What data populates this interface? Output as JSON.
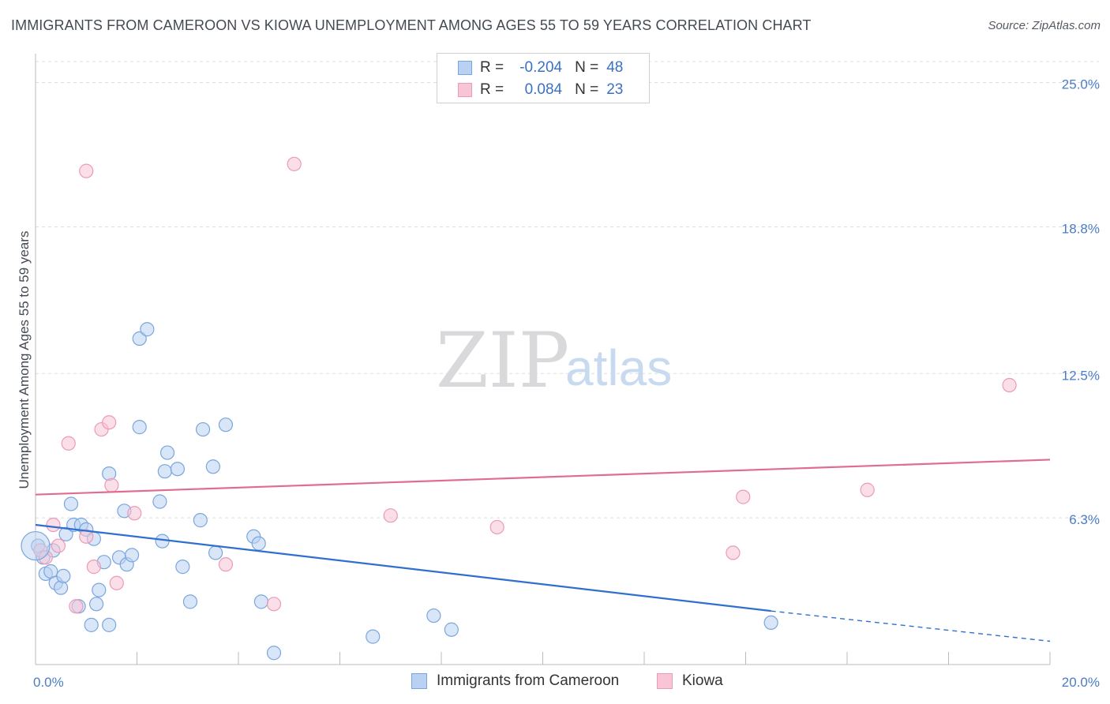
{
  "title": "IMMIGRANTS FROM CAMEROON VS KIOWA UNEMPLOYMENT AMONG AGES 55 TO 59 YEARS CORRELATION CHART",
  "source": "Source: ZipAtlas.com",
  "watermark": {
    "zip": "ZIP",
    "atlas": "atlas"
  },
  "colors": {
    "blue_fill": "#b9d1f2",
    "blue_stroke": "#7aa6dd",
    "blue_line": "#2f6fcf",
    "pink_fill": "#f7c5d5",
    "pink_stroke": "#ec9ab6",
    "pink_line": "#e06c94",
    "grid": "#dddddd",
    "axis_text": "#4a7cc9"
  },
  "legend": {
    "rows": [
      {
        "r_label": "R =",
        "r_value": "-0.204",
        "n_label": "N =",
        "n_value": "48"
      },
      {
        "r_label": "R =",
        "r_value": "0.084",
        "n_label": "N =",
        "n_value": "23"
      }
    ]
  },
  "bottom_legend": {
    "items": [
      {
        "label": "Immigrants from Cameroon"
      },
      {
        "label": "Kiowa"
      }
    ]
  },
  "chart_data": {
    "type": "scatter",
    "title": "IMMIGRANTS FROM CAMEROON VS KIOWA UNEMPLOYMENT AMONG AGES 55 TO 59 YEARS CORRELATION CHART",
    "xlabel": "",
    "ylabel": "Unemployment Among Ages 55 to 59 years",
    "xlim": [
      0,
      20
    ],
    "ylim": [
      0,
      25.9
    ],
    "x_tick_labels": [
      {
        "value": 0,
        "label": "0.0%"
      },
      {
        "value": 20,
        "label": "20.0%"
      }
    ],
    "y_ticks": [
      {
        "value": 25.0,
        "label": "25.0%"
      },
      {
        "value": 18.8,
        "label": "18.8%"
      },
      {
        "value": 12.5,
        "label": "12.5%"
      },
      {
        "value": 6.3,
        "label": "6.3%"
      }
    ],
    "x_minor_ticks": [
      0,
      2,
      4,
      6,
      8,
      10,
      12,
      14,
      16,
      18,
      20
    ],
    "series": [
      {
        "name": "Immigrants from Cameroon",
        "color": "blue",
        "trend": {
          "x0": 0,
          "y0": 6.0,
          "x1": 14.5,
          "y1": 2.3,
          "dash_to_x": 20,
          "dash_to_y": 1.0
        },
        "points": [
          [
            0.05,
            5.1
          ],
          [
            0.15,
            4.6
          ],
          [
            0.2,
            3.9
          ],
          [
            0.3,
            4.0
          ],
          [
            0.35,
            4.9
          ],
          [
            0.4,
            3.5
          ],
          [
            0.5,
            3.3
          ],
          [
            0.55,
            3.8
          ],
          [
            0.6,
            5.6
          ],
          [
            0.7,
            6.9
          ],
          [
            0.75,
            6.0
          ],
          [
            0.85,
            2.5
          ],
          [
            0.9,
            6.0
          ],
          [
            1.0,
            5.8
          ],
          [
            1.1,
            1.7
          ],
          [
            1.15,
            5.4
          ],
          [
            1.2,
            2.6
          ],
          [
            1.25,
            3.2
          ],
          [
            1.35,
            4.4
          ],
          [
            1.45,
            1.7
          ],
          [
            1.45,
            8.2
          ],
          [
            1.65,
            4.6
          ],
          [
            1.75,
            6.6
          ],
          [
            1.8,
            4.3
          ],
          [
            1.9,
            4.7
          ],
          [
            2.05,
            10.2
          ],
          [
            2.05,
            14.0
          ],
          [
            2.2,
            14.4
          ],
          [
            2.45,
            7.0
          ],
          [
            2.5,
            5.3
          ],
          [
            2.55,
            8.3
          ],
          [
            2.6,
            9.1
          ],
          [
            2.8,
            8.4
          ],
          [
            2.9,
            4.2
          ],
          [
            3.05,
            2.7
          ],
          [
            3.25,
            6.2
          ],
          [
            3.3,
            10.1
          ],
          [
            3.5,
            8.5
          ],
          [
            3.55,
            4.8
          ],
          [
            3.75,
            10.3
          ],
          [
            4.3,
            5.5
          ],
          [
            4.4,
            5.2
          ],
          [
            4.45,
            2.7
          ],
          [
            4.7,
            0.5
          ],
          [
            6.65,
            1.2
          ],
          [
            7.85,
            2.1
          ],
          [
            8.2,
            1.5
          ],
          [
            14.5,
            1.8
          ]
        ]
      },
      {
        "name": "Kiowa",
        "color": "pink",
        "trend": {
          "x0": 0,
          "y0": 7.3,
          "x1": 20,
          "y1": 8.8
        },
        "points": [
          [
            0.1,
            4.9
          ],
          [
            0.2,
            4.6
          ],
          [
            0.35,
            6.0
          ],
          [
            0.45,
            5.1
          ],
          [
            0.65,
            9.5
          ],
          [
            0.8,
            2.5
          ],
          [
            1.0,
            5.5
          ],
          [
            1.0,
            21.2
          ],
          [
            1.15,
            4.2
          ],
          [
            1.3,
            10.1
          ],
          [
            1.45,
            10.4
          ],
          [
            1.5,
            7.7
          ],
          [
            1.6,
            3.5
          ],
          [
            1.95,
            6.5
          ],
          [
            3.75,
            4.3
          ],
          [
            4.7,
            2.6
          ],
          [
            5.1,
            21.5
          ],
          [
            7.0,
            6.4
          ],
          [
            9.1,
            5.9
          ],
          [
            13.75,
            4.8
          ],
          [
            13.95,
            7.2
          ],
          [
            16.4,
            7.5
          ],
          [
            19.2,
            12.0
          ]
        ]
      }
    ]
  }
}
